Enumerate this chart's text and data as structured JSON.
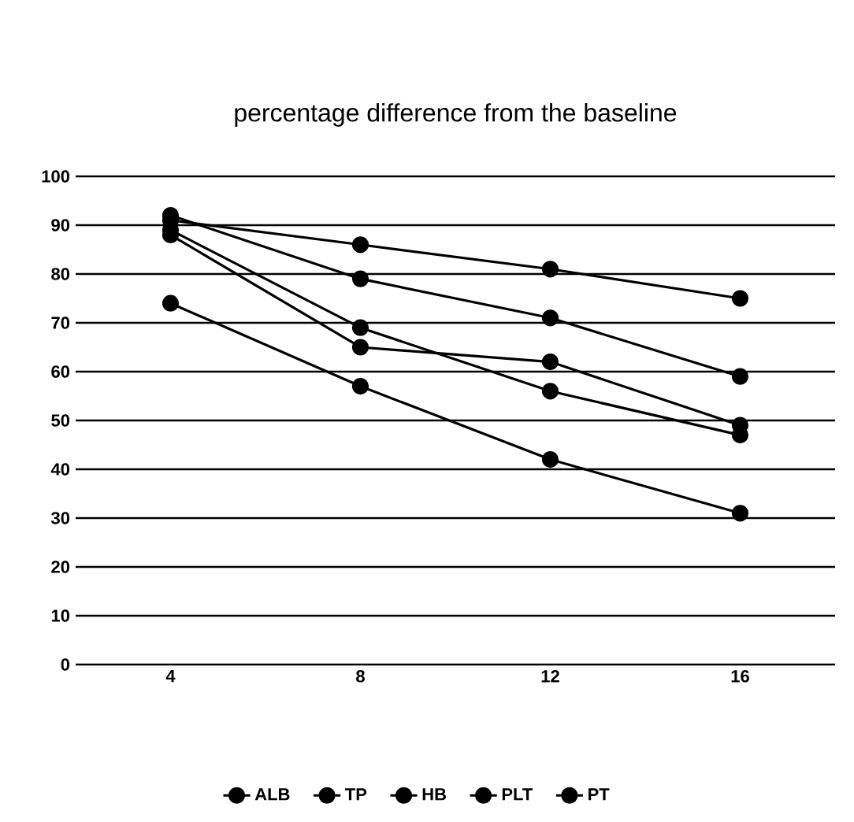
{
  "chart_data": {
    "type": "line",
    "title": "percentage difference from the baseline",
    "categories": [
      "4",
      "8",
      "12",
      "16"
    ],
    "series": [
      {
        "name": "ALB",
        "color": "#000000",
        "values": [
          91,
          86,
          81,
          75
        ]
      },
      {
        "name": "TP",
        "color": "#000000",
        "values": [
          92,
          79,
          71,
          59
        ]
      },
      {
        "name": "HB",
        "color": "#000000",
        "values": [
          89,
          69,
          56,
          47
        ]
      },
      {
        "name": "PLT",
        "color": "#000000",
        "values": [
          88,
          65,
          62,
          49
        ]
      },
      {
        "name": "PT",
        "color": "#000000",
        "values": [
          74,
          57,
          42,
          31
        ]
      }
    ],
    "ylim": [
      0,
      100
    ],
    "yticks": [
      0,
      10,
      20,
      30,
      40,
      50,
      60,
      70,
      80,
      90,
      100
    ],
    "grid": "y",
    "legend": "bottom",
    "marker": "circle",
    "line_style": "solid"
  }
}
